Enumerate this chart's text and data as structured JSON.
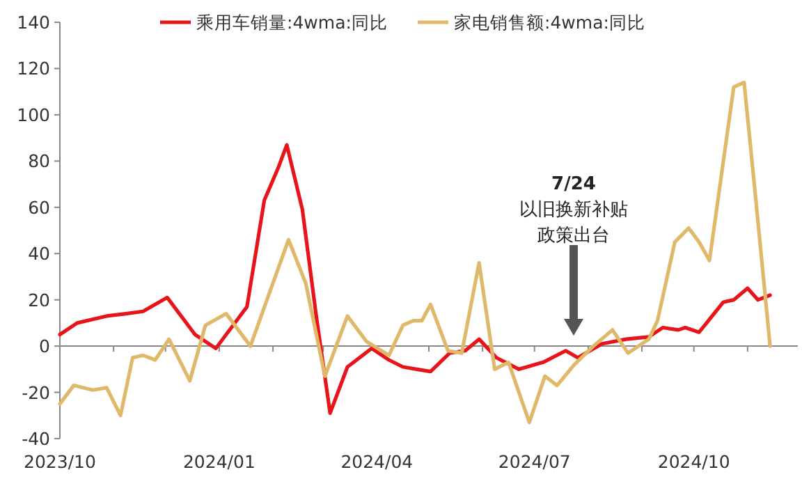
{
  "chart_data": {
    "type": "line",
    "legend": "top",
    "marker": "none",
    "line_style": "solid",
    "xlim": [
      "2023-10-01",
      "2024-11-30"
    ],
    "xticks": [
      {
        "value": "2023-10-01",
        "label": "2023/10"
      },
      {
        "value": "2023-11-01",
        "label": null
      },
      {
        "value": "2023-12-01",
        "label": null
      },
      {
        "value": "2024-01-01",
        "label": "2024/01"
      },
      {
        "value": "2024-02-01",
        "label": null
      },
      {
        "value": "2024-03-01",
        "label": null
      },
      {
        "value": "2024-04-01",
        "label": "2024/04"
      },
      {
        "value": "2024-05-01",
        "label": null
      },
      {
        "value": "2024-06-01",
        "label": null
      },
      {
        "value": "2024-07-01",
        "label": "2024/07"
      },
      {
        "value": "2024-08-01",
        "label": null
      },
      {
        "value": "2024-09-01",
        "label": null
      },
      {
        "value": "2024-10-01",
        "label": "2024/10"
      },
      {
        "value": "2024-11-01",
        "label": null
      }
    ],
    "ylim": [
      -40,
      140
    ],
    "yticks": [
      -40,
      -20,
      0,
      20,
      40,
      60,
      80,
      100,
      120,
      140
    ],
    "annotations": [
      "7/24",
      "以旧换新补贴",
      "政策出台"
    ],
    "series": [
      {
        "name": "乘用车销量:4wma:同比",
        "color": "#e8141b",
        "x": [
          "2023-10-01",
          "2023-10-11",
          "2023-10-28",
          "2023-11-08",
          "2023-11-18",
          "2023-12-02",
          "2023-12-18",
          "2023-12-30",
          "2024-01-09",
          "2024-01-17",
          "2024-01-27",
          "2024-02-04",
          "2024-02-09",
          "2024-02-18",
          "2024-02-26",
          "2024-03-05",
          "2024-03-15",
          "2024-03-29",
          "2024-04-08",
          "2024-04-16",
          "2024-04-24",
          "2024-05-02",
          "2024-05-13",
          "2024-05-22",
          "2024-05-30",
          "2024-06-09",
          "2024-06-22",
          "2024-07-06",
          "2024-07-19",
          "2024-07-26",
          "2024-08-09",
          "2024-08-23",
          "2024-09-05",
          "2024-09-13",
          "2024-09-22",
          "2024-09-26",
          "2024-10-04",
          "2024-10-18",
          "2024-10-24",
          "2024-11-01",
          "2024-11-07",
          "2024-11-14"
        ],
        "values": [
          5,
          10,
          13,
          14,
          15,
          21,
          5,
          -1,
          9,
          17,
          63,
          77,
          87,
          59,
          13,
          -29,
          -9,
          -1,
          -6,
          -9,
          -10,
          -11,
          -3,
          -2,
          3,
          -5,
          -10,
          -7,
          -2,
          -5,
          1,
          3,
          4,
          8,
          7,
          8,
          6,
          19,
          20,
          25,
          20,
          22
        ]
      },
      {
        "name": "家电销售额:4wma:同比",
        "color": "#e0b86a",
        "x": [
          "2023-10-01",
          "2023-10-09",
          "2023-10-20",
          "2023-10-28",
          "2023-11-05",
          "2023-11-12",
          "2023-11-18",
          "2023-11-25",
          "2023-12-03",
          "2023-12-15",
          "2023-12-24",
          "2024-01-05",
          "2024-01-19",
          "2024-01-29",
          "2024-02-10",
          "2024-02-20",
          "2024-03-02",
          "2024-03-15",
          "2024-03-26",
          "2024-04-08",
          "2024-04-16",
          "2024-04-22",
          "2024-04-27",
          "2024-05-02",
          "2024-05-12",
          "2024-05-20",
          "2024-05-30",
          "2024-06-08",
          "2024-06-16",
          "2024-06-28",
          "2024-07-07",
          "2024-07-14",
          "2024-07-24",
          "2024-08-04",
          "2024-08-15",
          "2024-08-24",
          "2024-09-05",
          "2024-09-10",
          "2024-09-20",
          "2024-09-28",
          "2024-10-04",
          "2024-10-10",
          "2024-10-24",
          "2024-10-30",
          "2024-11-05",
          "2024-11-14"
        ],
        "values": [
          -25,
          -17,
          -19,
          -18,
          -30,
          -5,
          -4,
          -6,
          3,
          -15,
          9,
          14,
          0,
          21,
          46,
          27,
          -13,
          13,
          2,
          -4,
          9,
          11,
          11,
          18,
          -2,
          -3,
          36,
          -10,
          -7,
          -33,
          -13,
          -17,
          -8,
          0,
          7,
          -3,
          3,
          11,
          45,
          51,
          45,
          37,
          112,
          114,
          69,
          0
        ]
      }
    ]
  }
}
